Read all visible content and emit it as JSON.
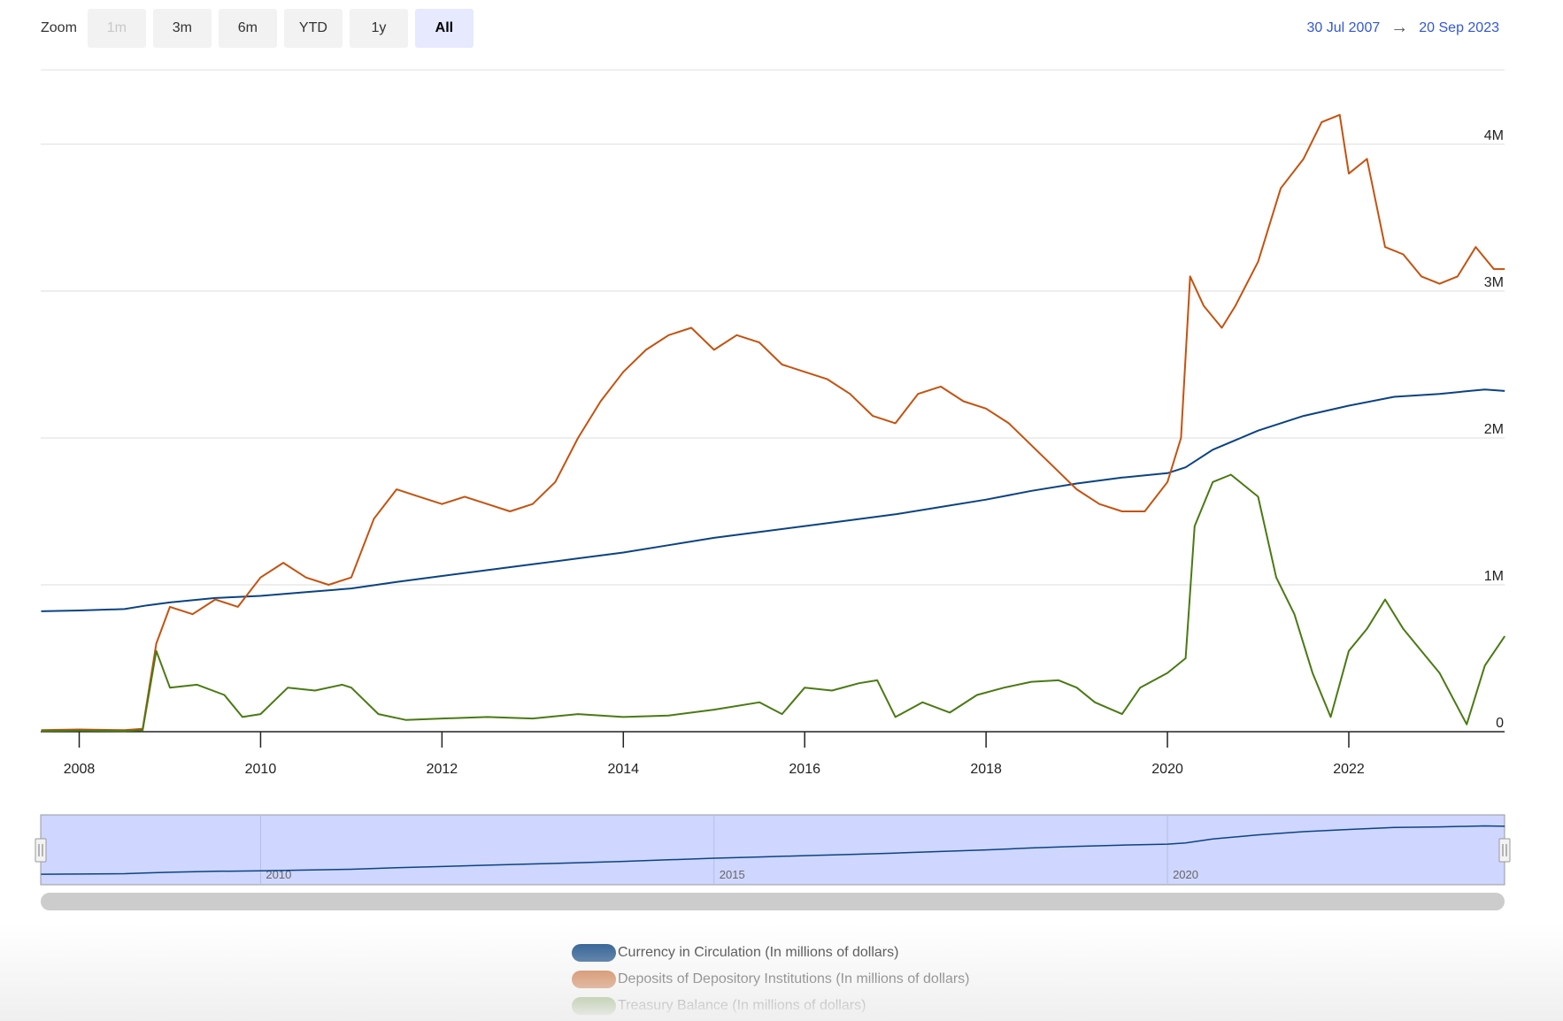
{
  "zoom": {
    "label": "Zoom",
    "buttons": [
      {
        "label": "1m",
        "state": "disabled"
      },
      {
        "label": "3m",
        "state": "normal"
      },
      {
        "label": "6m",
        "state": "normal"
      },
      {
        "label": "YTD",
        "state": "normal"
      },
      {
        "label": "1y",
        "state": "normal"
      },
      {
        "label": "All",
        "state": "active"
      }
    ]
  },
  "range": {
    "from": "30 Jul 2007",
    "arrow": "→",
    "to": "20 Sep 2023"
  },
  "colors": {
    "currency": "#0b4382",
    "deposits": "#c4520f",
    "treasury": "#4a7a13",
    "navigator_fill": "#cfd6ff",
    "navigator_border": "#999999"
  },
  "chart_data": {
    "type": "line",
    "x_type": "date",
    "xlim": [
      "2007-07-30",
      "2023-09-20"
    ],
    "ylim": [
      0,
      4500000
    ],
    "y_ticks": [
      {
        "value": 0,
        "label": "0"
      },
      {
        "value": 1000000,
        "label": "1M"
      },
      {
        "value": 2000000,
        "label": "2M"
      },
      {
        "value": 3000000,
        "label": "3M"
      },
      {
        "value": 4000000,
        "label": "4M"
      }
    ],
    "x_ticks": [
      "2008",
      "2010",
      "2012",
      "2014",
      "2016",
      "2018",
      "2020",
      "2022"
    ],
    "grid": true,
    "legend_placement": "bottom-center",
    "series": [
      {
        "name": "Currency in Circulation (In millions of dollars)",
        "color_key": "currency",
        "x": [
          2007.58,
          2008.0,
          2008.5,
          2008.75,
          2009.0,
          2009.5,
          2010.0,
          2010.5,
          2011.0,
          2011.5,
          2012.0,
          2012.5,
          2013.0,
          2013.5,
          2014.0,
          2014.5,
          2015.0,
          2015.5,
          2016.0,
          2016.5,
          2017.0,
          2017.5,
          2018.0,
          2018.5,
          2019.0,
          2019.5,
          2020.0,
          2020.2,
          2020.5,
          2021.0,
          2021.5,
          2022.0,
          2022.5,
          2023.0,
          2023.5,
          2023.72
        ],
        "values": [
          820000,
          825000,
          835000,
          860000,
          880000,
          910000,
          925000,
          950000,
          975000,
          1020000,
          1060000,
          1100000,
          1140000,
          1180000,
          1220000,
          1270000,
          1320000,
          1360000,
          1400000,
          1440000,
          1480000,
          1530000,
          1580000,
          1640000,
          1690000,
          1730000,
          1760000,
          1800000,
          1920000,
          2050000,
          2150000,
          2220000,
          2280000,
          2300000,
          2330000,
          2320000
        ]
      },
      {
        "name": "Deposits of Depository Institutions (In millions of dollars)",
        "color_key": "deposits",
        "x": [
          2007.58,
          2008.0,
          2008.5,
          2008.7,
          2008.85,
          2009.0,
          2009.25,
          2009.5,
          2009.75,
          2010.0,
          2010.25,
          2010.5,
          2010.75,
          2011.0,
          2011.25,
          2011.5,
          2011.75,
          2012.0,
          2012.25,
          2012.5,
          2012.75,
          2013.0,
          2013.25,
          2013.5,
          2013.75,
          2014.0,
          2014.25,
          2014.5,
          2014.75,
          2015.0,
          2015.25,
          2015.5,
          2015.75,
          2016.0,
          2016.25,
          2016.5,
          2016.75,
          2017.0,
          2017.25,
          2017.5,
          2017.75,
          2018.0,
          2018.25,
          2018.5,
          2018.75,
          2019.0,
          2019.25,
          2019.5,
          2019.75,
          2020.0,
          2020.15,
          2020.25,
          2020.4,
          2020.6,
          2020.75,
          2021.0,
          2021.25,
          2021.5,
          2021.7,
          2021.9,
          2022.0,
          2022.2,
          2022.4,
          2022.6,
          2022.8,
          2023.0,
          2023.2,
          2023.4,
          2023.6,
          2023.72
        ],
        "values": [
          10000,
          15000,
          10000,
          20000,
          600000,
          850000,
          800000,
          900000,
          850000,
          1050000,
          1150000,
          1050000,
          1000000,
          1050000,
          1450000,
          1650000,
          1600000,
          1550000,
          1600000,
          1550000,
          1500000,
          1550000,
          1700000,
          2000000,
          2250000,
          2450000,
          2600000,
          2700000,
          2750000,
          2600000,
          2700000,
          2650000,
          2500000,
          2450000,
          2400000,
          2300000,
          2150000,
          2100000,
          2300000,
          2350000,
          2250000,
          2200000,
          2100000,
          1950000,
          1800000,
          1650000,
          1550000,
          1500000,
          1500000,
          1700000,
          2000000,
          3100000,
          2900000,
          2750000,
          2900000,
          3200000,
          3700000,
          3900000,
          4150000,
          4200000,
          3800000,
          3900000,
          3300000,
          3250000,
          3100000,
          3050000,
          3100000,
          3300000,
          3150000,
          3150000
        ]
      },
      {
        "name": "Treasury Balance (In millions of dollars)",
        "color_key": "treasury",
        "x": [
          2007.58,
          2008.0,
          2008.5,
          2008.7,
          2008.85,
          2009.0,
          2009.3,
          2009.6,
          2009.8,
          2010.0,
          2010.3,
          2010.6,
          2010.9,
          2011.0,
          2011.3,
          2011.6,
          2012.0,
          2012.5,
          2013.0,
          2013.5,
          2014.0,
          2014.5,
          2015.0,
          2015.5,
          2015.75,
          2016.0,
          2016.3,
          2016.6,
          2016.8,
          2017.0,
          2017.3,
          2017.6,
          2017.9,
          2018.2,
          2018.5,
          2018.8,
          2019.0,
          2019.2,
          2019.5,
          2019.7,
          2020.0,
          2020.2,
          2020.3,
          2020.5,
          2020.7,
          2020.9,
          2021.0,
          2021.2,
          2021.4,
          2021.6,
          2021.8,
          2022.0,
          2022.2,
          2022.4,
          2022.6,
          2022.8,
          2023.0,
          2023.3,
          2023.5,
          2023.72
        ],
        "values": [
          5000,
          8000,
          5000,
          10000,
          550000,
          300000,
          320000,
          250000,
          100000,
          120000,
          300000,
          280000,
          320000,
          300000,
          120000,
          80000,
          90000,
          100000,
          90000,
          120000,
          100000,
          110000,
          150000,
          200000,
          120000,
          300000,
          280000,
          330000,
          350000,
          100000,
          200000,
          130000,
          250000,
          300000,
          340000,
          350000,
          300000,
          200000,
          120000,
          300000,
          400000,
          500000,
          1400000,
          1700000,
          1750000,
          1650000,
          1600000,
          1050000,
          800000,
          400000,
          100000,
          550000,
          700000,
          900000,
          700000,
          550000,
          400000,
          50000,
          450000,
          650000
        ]
      }
    ]
  },
  "navigator": {
    "x_ticks": [
      "2010",
      "2015",
      "2020"
    ]
  }
}
